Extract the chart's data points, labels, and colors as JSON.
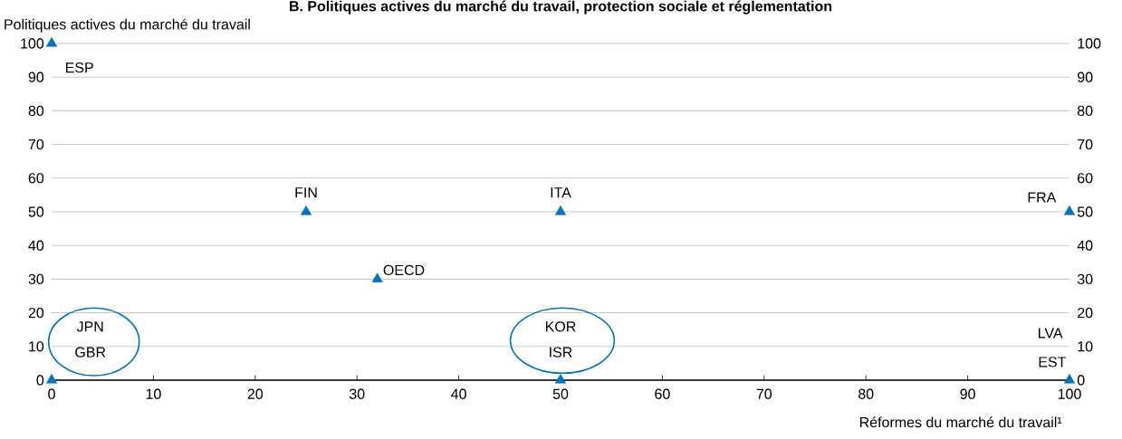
{
  "chart_data": {
    "type": "scatter",
    "title": "B. Politiques actives du marché du travail, protection sociale et réglementation",
    "xlabel": "Réformes du marché du travail¹",
    "ylabel": "Politiques actives du marché du travail",
    "x": [
      0,
      25,
      50,
      100,
      32,
      0,
      50,
      100
    ],
    "series": [
      {
        "color": "#0072bc",
        "values": [
          100,
          50,
          50,
          50,
          30,
          0,
          0,
          0
        ]
      }
    ],
    "marker": "triangle",
    "grid": "y",
    "xlim": [
      0,
      100
    ],
    "xticks": [
      0,
      10,
      20,
      30,
      40,
      50,
      60,
      70,
      80,
      90,
      100
    ],
    "ylim": [
      0,
      100
    ],
    "yticks": [
      0,
      10,
      20,
      30,
      40,
      50,
      60,
      70,
      80,
      90,
      100
    ],
    "y2lim": [
      0,
      100
    ],
    "y2ticks": [
      0,
      10,
      20,
      30,
      40,
      50,
      60,
      70,
      80,
      90,
      100
    ],
    "annotations": [
      {
        "text": "ESP",
        "x": 0,
        "y": 100
      },
      {
        "text": "FIN",
        "x": 25,
        "y": 50
      },
      {
        "text": "ITA",
        "x": 50,
        "y": 50
      },
      {
        "text": "FRA",
        "x": 100,
        "y": 50
      },
      {
        "text": "OECD",
        "x": 32,
        "y": 30
      },
      "JPN",
      "GBR",
      "KOR",
      "ISR",
      "LVA",
      "EST"
    ]
  }
}
